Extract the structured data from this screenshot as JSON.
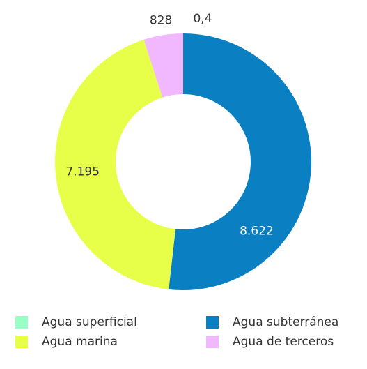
{
  "chart_data": {
    "type": "donut",
    "categories": [
      "Agua superficial",
      "Agua subterránea",
      "Agua marina",
      "Agua de terceros"
    ],
    "values": [
      0.4,
      8622,
      7195,
      828
    ],
    "value_labels": [
      "0,4",
      "8.622",
      "7.195",
      "828"
    ],
    "colors": [
      "#9affc6",
      "#0a7fc1",
      "#e8ff4a",
      "#f2b8ff"
    ],
    "legend": "bottom"
  }
}
